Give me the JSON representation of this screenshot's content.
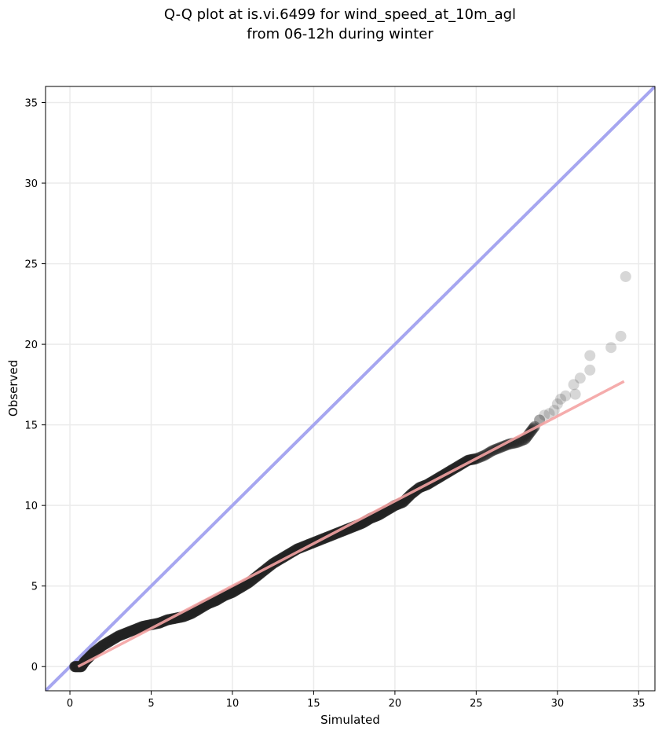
{
  "chart_data": {
    "type": "scatter",
    "title_lines": [
      "Q-Q plot at is.vi.6499 for wind_speed_at_10m_agl",
      "from 06-12h during winter"
    ],
    "xlabel": "Simulated",
    "ylabel": "Observed",
    "xlim": [
      -1.5,
      36
    ],
    "ylim": [
      -1.5,
      36
    ],
    "xticks": [
      0,
      5,
      10,
      15,
      20,
      25,
      30,
      35
    ],
    "yticks": [
      0,
      5,
      10,
      15,
      20,
      25,
      30,
      35
    ],
    "xtick_labels": [
      "0",
      "5",
      "10",
      "15",
      "20",
      "25",
      "30",
      "35"
    ],
    "ytick_labels": [
      "0",
      "5",
      "10",
      "15",
      "20",
      "25",
      "30",
      "35"
    ],
    "grid": true,
    "reference_line": {
      "color": "#a6a6f0",
      "from": [
        -1.5,
        -1.5
      ],
      "to": [
        36,
        36
      ]
    },
    "fit_line": {
      "color": "#f4a3a3",
      "from": [
        0.5,
        0.0
      ],
      "to": [
        34.1,
        17.7
      ]
    },
    "point_color": "#222222",
    "quantiles": {
      "x": [
        0.3,
        0.5,
        0.7,
        0.9,
        1.2,
        1.5,
        2.0,
        2.5,
        3.0,
        3.5,
        4.0,
        4.5,
        5.0,
        5.5,
        6.0,
        6.5,
        7.0,
        7.5,
        8.0,
        8.5,
        9.0,
        9.5,
        10.0,
        10.5,
        11.0,
        11.5,
        12.0,
        12.5,
        13.0,
        13.5,
        14.0,
        14.5,
        15.0,
        15.5,
        16.0,
        16.5,
        17.0,
        17.5,
        18.0,
        18.5,
        19.0,
        19.5,
        20.0,
        20.5,
        21.0,
        21.5,
        22.0,
        22.5,
        23.0,
        23.5,
        24.0,
        24.5,
        25.0,
        25.5,
        26.0,
        26.5,
        27.0,
        27.5,
        28.0,
        28.3,
        28.6,
        28.9,
        29.2,
        29.5,
        29.8,
        30.0,
        30.2,
        30.5,
        31.0,
        31.1,
        31.4,
        32.0,
        32.0,
        33.3,
        33.9,
        34.2
      ],
      "y": [
        0.0,
        0.0,
        0.0,
        0.3,
        0.6,
        0.9,
        1.3,
        1.6,
        1.9,
        2.1,
        2.3,
        2.5,
        2.6,
        2.7,
        2.9,
        3.0,
        3.1,
        3.3,
        3.6,
        3.9,
        4.1,
        4.4,
        4.6,
        4.9,
        5.2,
        5.6,
        6.0,
        6.4,
        6.7,
        7.0,
        7.3,
        7.5,
        7.7,
        7.9,
        8.1,
        8.3,
        8.5,
        8.7,
        8.9,
        9.2,
        9.4,
        9.7,
        10.0,
        10.2,
        10.7,
        11.1,
        11.3,
        11.6,
        11.9,
        12.2,
        12.5,
        12.8,
        12.9,
        13.1,
        13.4,
        13.6,
        13.8,
        13.9,
        14.1,
        14.5,
        14.9,
        15.3,
        15.6,
        15.7,
        15.9,
        16.3,
        16.6,
        16.8,
        17.5,
        16.9,
        17.9,
        18.4,
        19.3,
        19.8,
        20.5,
        24.2
      ]
    }
  }
}
